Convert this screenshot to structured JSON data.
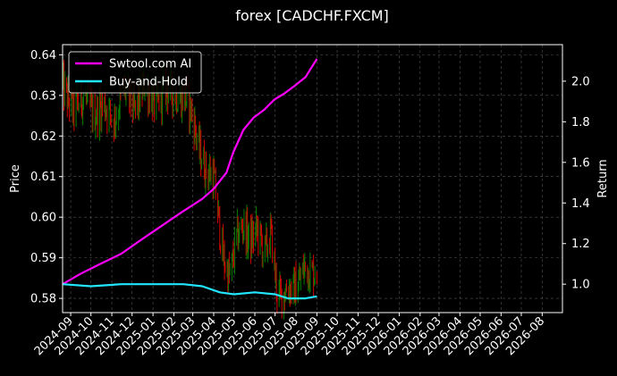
{
  "chart_data": {
    "type": "candlestick-line",
    "title": "forex [CADCHF.FXCM]",
    "ylabel_left": "Price",
    "ylabel_right": "Return",
    "xlabel": "",
    "grid": true,
    "background": "#000000",
    "legend_position": "top-left",
    "x_axis": {
      "range": [
        "2024-08-20",
        "2026-08-31"
      ],
      "ticks": [
        "2024-09",
        "2024-10",
        "2024-11",
        "2024-12",
        "2025-01",
        "2025-02",
        "2025-03",
        "2025-04",
        "2025-05",
        "2025-06",
        "2025-07",
        "2025-08",
        "2025-09",
        "2025-10",
        "2025-11",
        "2025-12",
        "2026-01",
        "2026-02",
        "2026-03",
        "2026-04",
        "2026-05",
        "2026-06",
        "2026-07",
        "2026-08"
      ]
    },
    "y_left": {
      "range": [
        0.5765,
        0.6425
      ],
      "ticks": [
        "0.58",
        "0.59",
        "0.60",
        "0.61",
        "0.62",
        "0.63",
        "0.64"
      ]
    },
    "y_right": {
      "range": [
        0.86,
        2.18
      ],
      "ticks": [
        "1.0",
        "1.2",
        "1.4",
        "1.6",
        "1.8",
        "2.0"
      ]
    },
    "colors": {
      "up": "#008000",
      "down": "#d40000",
      "ai": "#ff00ff",
      "bh": "#22e5ff",
      "grid": "#555555"
    },
    "price_series": {
      "dates": [
        "2024-08-20",
        "2024-09-05",
        "2024-09-20",
        "2024-10-05",
        "2024-10-20",
        "2024-11-05",
        "2024-11-20",
        "2024-12-05",
        "2024-12-20",
        "2025-01-05",
        "2025-01-20",
        "2025-02-05",
        "2025-02-20",
        "2025-03-01",
        "2025-03-10",
        "2025-03-20",
        "2025-04-01",
        "2025-04-08",
        "2025-04-15",
        "2025-04-25",
        "2025-05-05",
        "2025-05-15",
        "2025-05-25",
        "2025-06-05",
        "2025-06-15",
        "2025-06-25",
        "2025-07-05",
        "2025-07-12",
        "2025-07-20",
        "2025-07-28",
        "2025-08-05",
        "2025-08-15",
        "2025-08-25",
        "2025-09-01"
      ],
      "close": [
        0.632,
        0.626,
        0.63,
        0.625,
        0.628,
        0.624,
        0.632,
        0.626,
        0.633,
        0.627,
        0.632,
        0.63,
        0.629,
        0.625,
        0.617,
        0.612,
        0.61,
        0.6,
        0.59,
        0.585,
        0.595,
        0.598,
        0.594,
        0.597,
        0.591,
        0.596,
        0.58,
        0.581,
        0.583,
        0.582,
        0.584,
        0.588,
        0.586,
        0.588
      ]
    },
    "series": [
      {
        "name": "Swtool.com AI",
        "axis": "right",
        "dates": [
          "2024-08-20",
          "2024-09-15",
          "2024-10-15",
          "2024-11-15",
          "2024-12-15",
          "2025-01-15",
          "2025-02-15",
          "2025-03-15",
          "2025-04-01",
          "2025-04-20",
          "2025-04-30",
          "2025-05-15",
          "2025-05-30",
          "2025-06-15",
          "2025-06-30",
          "2025-07-15",
          "2025-07-31",
          "2025-08-15",
          "2025-09-01"
        ],
        "values": [
          1.0,
          1.05,
          1.1,
          1.15,
          1.22,
          1.29,
          1.36,
          1.42,
          1.47,
          1.55,
          1.65,
          1.76,
          1.82,
          1.86,
          1.91,
          1.94,
          1.98,
          2.02,
          2.11
        ]
      },
      {
        "name": "Buy-and-Hold",
        "axis": "right",
        "dates": [
          "2024-08-20",
          "2024-10-01",
          "2024-11-15",
          "2025-01-01",
          "2025-02-15",
          "2025-03-15",
          "2025-04-10",
          "2025-05-01",
          "2025-06-01",
          "2025-07-01",
          "2025-07-20",
          "2025-08-15",
          "2025-09-01"
        ],
        "values": [
          1.0,
          0.99,
          1.0,
          1.0,
          1.0,
          0.99,
          0.96,
          0.95,
          0.96,
          0.95,
          0.93,
          0.93,
          0.94
        ]
      }
    ]
  }
}
